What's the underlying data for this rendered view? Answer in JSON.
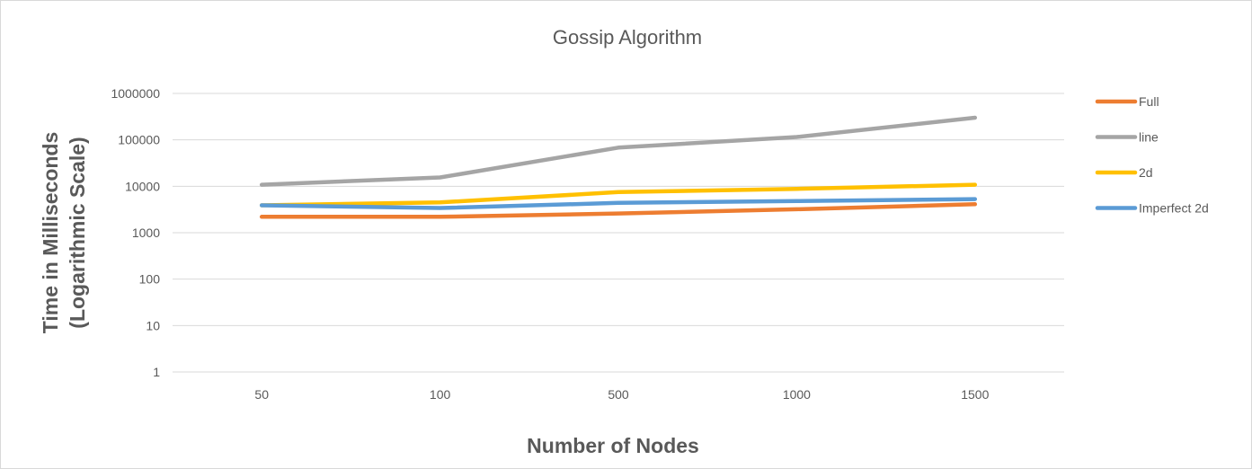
{
  "chart_data": {
    "type": "line",
    "title": "Gossip Algorithm",
    "xlabel": "Number of Nodes",
    "ylabel_lines": [
      "Time in Milliseconds",
      "(Logarithmic Scale)"
    ],
    "categories": [
      "50",
      "100",
      "500",
      "1000",
      "1500"
    ],
    "y_scale": "log10",
    "ylim": [
      1,
      1000000
    ],
    "y_ticks": [
      "1",
      "10",
      "100",
      "1000",
      "10000",
      "100000",
      "1000000"
    ],
    "grid": true,
    "legend_position": "right",
    "series": [
      {
        "name": "Full",
        "color": "#ed7d31",
        "values": [
          2200,
          2200,
          2600,
          3200,
          4100
        ]
      },
      {
        "name": "line",
        "color": "#a5a5a5",
        "values": [
          10800,
          15500,
          68000,
          115000,
          300000
        ]
      },
      {
        "name": "2d",
        "color": "#ffc000",
        "values": [
          3900,
          4500,
          7500,
          8800,
          10800
        ]
      },
      {
        "name": "Imperfect 2d",
        "color": "#5b9bd5",
        "values": [
          3900,
          3400,
          4400,
          4800,
          5300
        ]
      }
    ]
  }
}
